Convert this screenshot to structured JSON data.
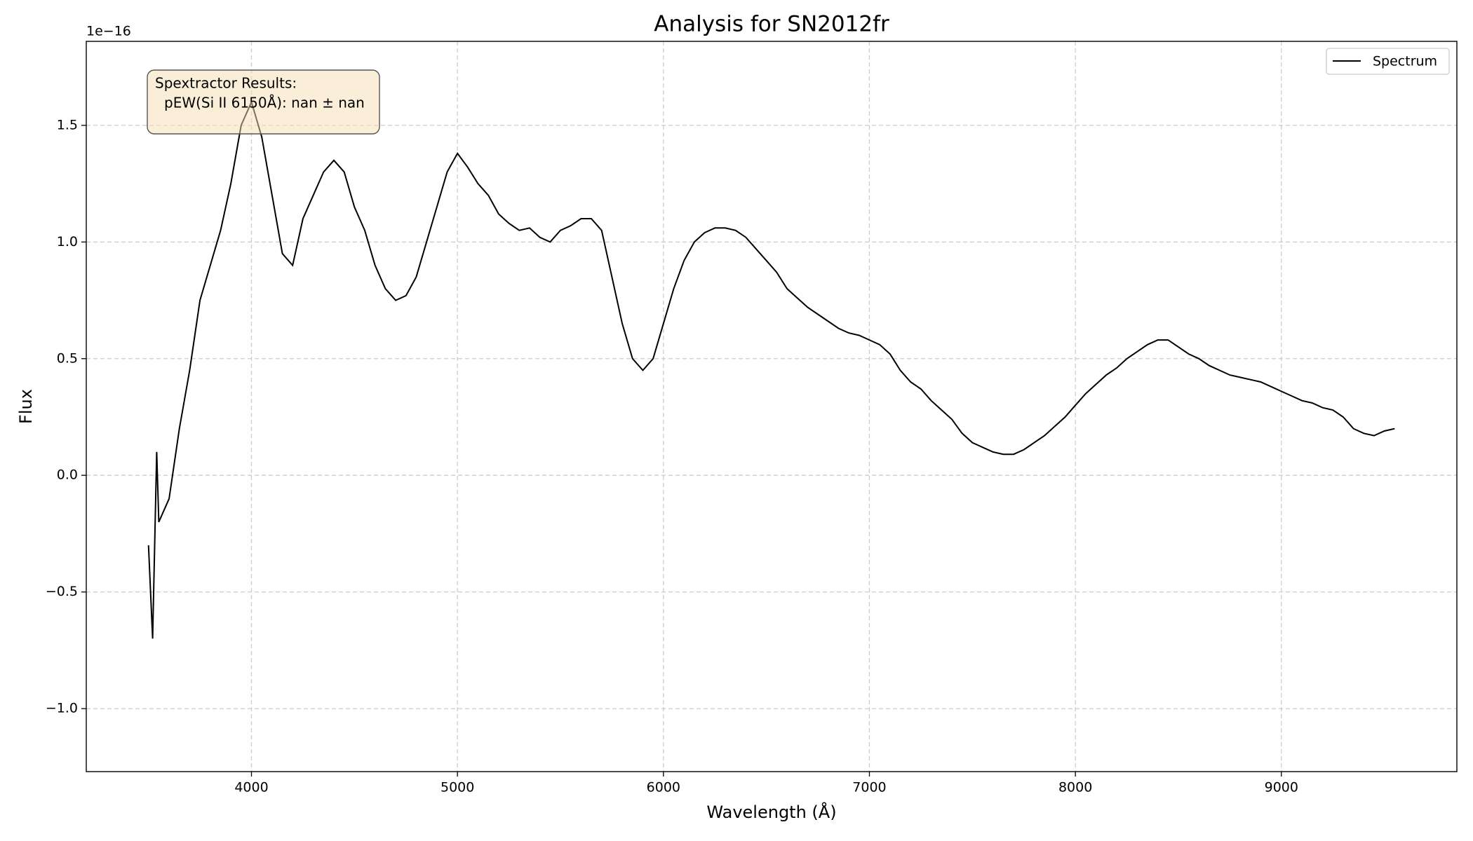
{
  "chart_data": {
    "type": "line",
    "title": "Analysis for SN2012fr",
    "x_label": "Wavelength (Å)",
    "y_label": "Flux",
    "y_offset_label": "1e−16",
    "annotation": [
      "Spextractor Results:",
      "pEW(Si II 6150Å): nan ± nan"
    ],
    "legend": "upper right",
    "grid": true,
    "xlim": [
      3198,
      9852
    ],
    "ylim": [
      -1.27,
      1.86
    ],
    "xticks": [
      4000,
      5000,
      6000,
      7000,
      8000,
      9000
    ],
    "yticks": [
      {
        "value": -1.0,
        "label": "−1.0"
      },
      {
        "value": -0.5,
        "label": "−0.5"
      },
      {
        "value": 0.0,
        "label": "0.0"
      },
      {
        "value": 0.5,
        "label": "0.5"
      },
      {
        "value": 1.0,
        "label": "1.0"
      },
      {
        "value": 1.5,
        "label": "1.5"
      }
    ],
    "x": [
      3500,
      3520,
      3540,
      3550,
      3600,
      3650,
      3700,
      3750,
      3800,
      3850,
      3900,
      3950,
      4000,
      4050,
      4100,
      4150,
      4200,
      4250,
      4300,
      4350,
      4400,
      4450,
      4500,
      4550,
      4600,
      4650,
      4700,
      4750,
      4800,
      4850,
      4900,
      4950,
      5000,
      5050,
      5100,
      5150,
      5200,
      5250,
      5300,
      5350,
      5400,
      5450,
      5500,
      5550,
      5600,
      5650,
      5700,
      5750,
      5800,
      5850,
      5900,
      5950,
      6000,
      6050,
      6100,
      6150,
      6200,
      6250,
      6300,
      6350,
      6400,
      6450,
      6500,
      6550,
      6600,
      6650,
      6700,
      6750,
      6800,
      6850,
      6900,
      6950,
      7000,
      7050,
      7100,
      7150,
      7200,
      7250,
      7300,
      7350,
      7400,
      7450,
      7500,
      7550,
      7600,
      7650,
      7700,
      7750,
      7800,
      7850,
      7900,
      7950,
      8000,
      8050,
      8100,
      8150,
      8200,
      8250,
      8300,
      8350,
      8400,
      8450,
      8500,
      8550,
      8600,
      8650,
      8700,
      8750,
      8800,
      8850,
      8900,
      8950,
      9000,
      9050,
      9100,
      9150,
      9200,
      9250,
      9300,
      9350,
      9400,
      9450,
      9500,
      9550
    ],
    "series": [
      {
        "name": "Spectrum",
        "color": "#000000",
        "values": [
          -0.3,
          -0.7,
          0.1,
          -0.2,
          -0.1,
          0.2,
          0.45,
          0.75,
          0.9,
          1.05,
          1.25,
          1.5,
          1.6,
          1.45,
          1.2,
          0.95,
          0.9,
          1.1,
          1.2,
          1.3,
          1.35,
          1.3,
          1.15,
          1.05,
          0.9,
          0.8,
          0.75,
          0.77,
          0.85,
          1.0,
          1.15,
          1.3,
          1.38,
          1.32,
          1.25,
          1.2,
          1.12,
          1.08,
          1.05,
          1.06,
          1.02,
          1.0,
          1.05,
          1.07,
          1.1,
          1.1,
          1.05,
          0.85,
          0.65,
          0.5,
          0.45,
          0.5,
          0.65,
          0.8,
          0.92,
          1.0,
          1.04,
          1.06,
          1.06,
          1.05,
          1.02,
          0.97,
          0.92,
          0.87,
          0.8,
          0.76,
          0.72,
          0.69,
          0.66,
          0.63,
          0.61,
          0.6,
          0.58,
          0.56,
          0.52,
          0.45,
          0.4,
          0.37,
          0.32,
          0.28,
          0.24,
          0.18,
          0.14,
          0.12,
          0.1,
          0.09,
          0.09,
          0.11,
          0.14,
          0.17,
          0.21,
          0.25,
          0.3,
          0.35,
          0.39,
          0.43,
          0.46,
          0.5,
          0.53,
          0.56,
          0.58,
          0.58,
          0.55,
          0.52,
          0.5,
          0.47,
          0.45,
          0.43,
          0.42,
          0.41,
          0.4,
          0.38,
          0.36,
          0.34,
          0.32,
          0.31,
          0.29,
          0.28,
          0.25,
          0.2,
          0.18,
          0.17,
          0.19,
          0.2
        ]
      }
    ]
  }
}
